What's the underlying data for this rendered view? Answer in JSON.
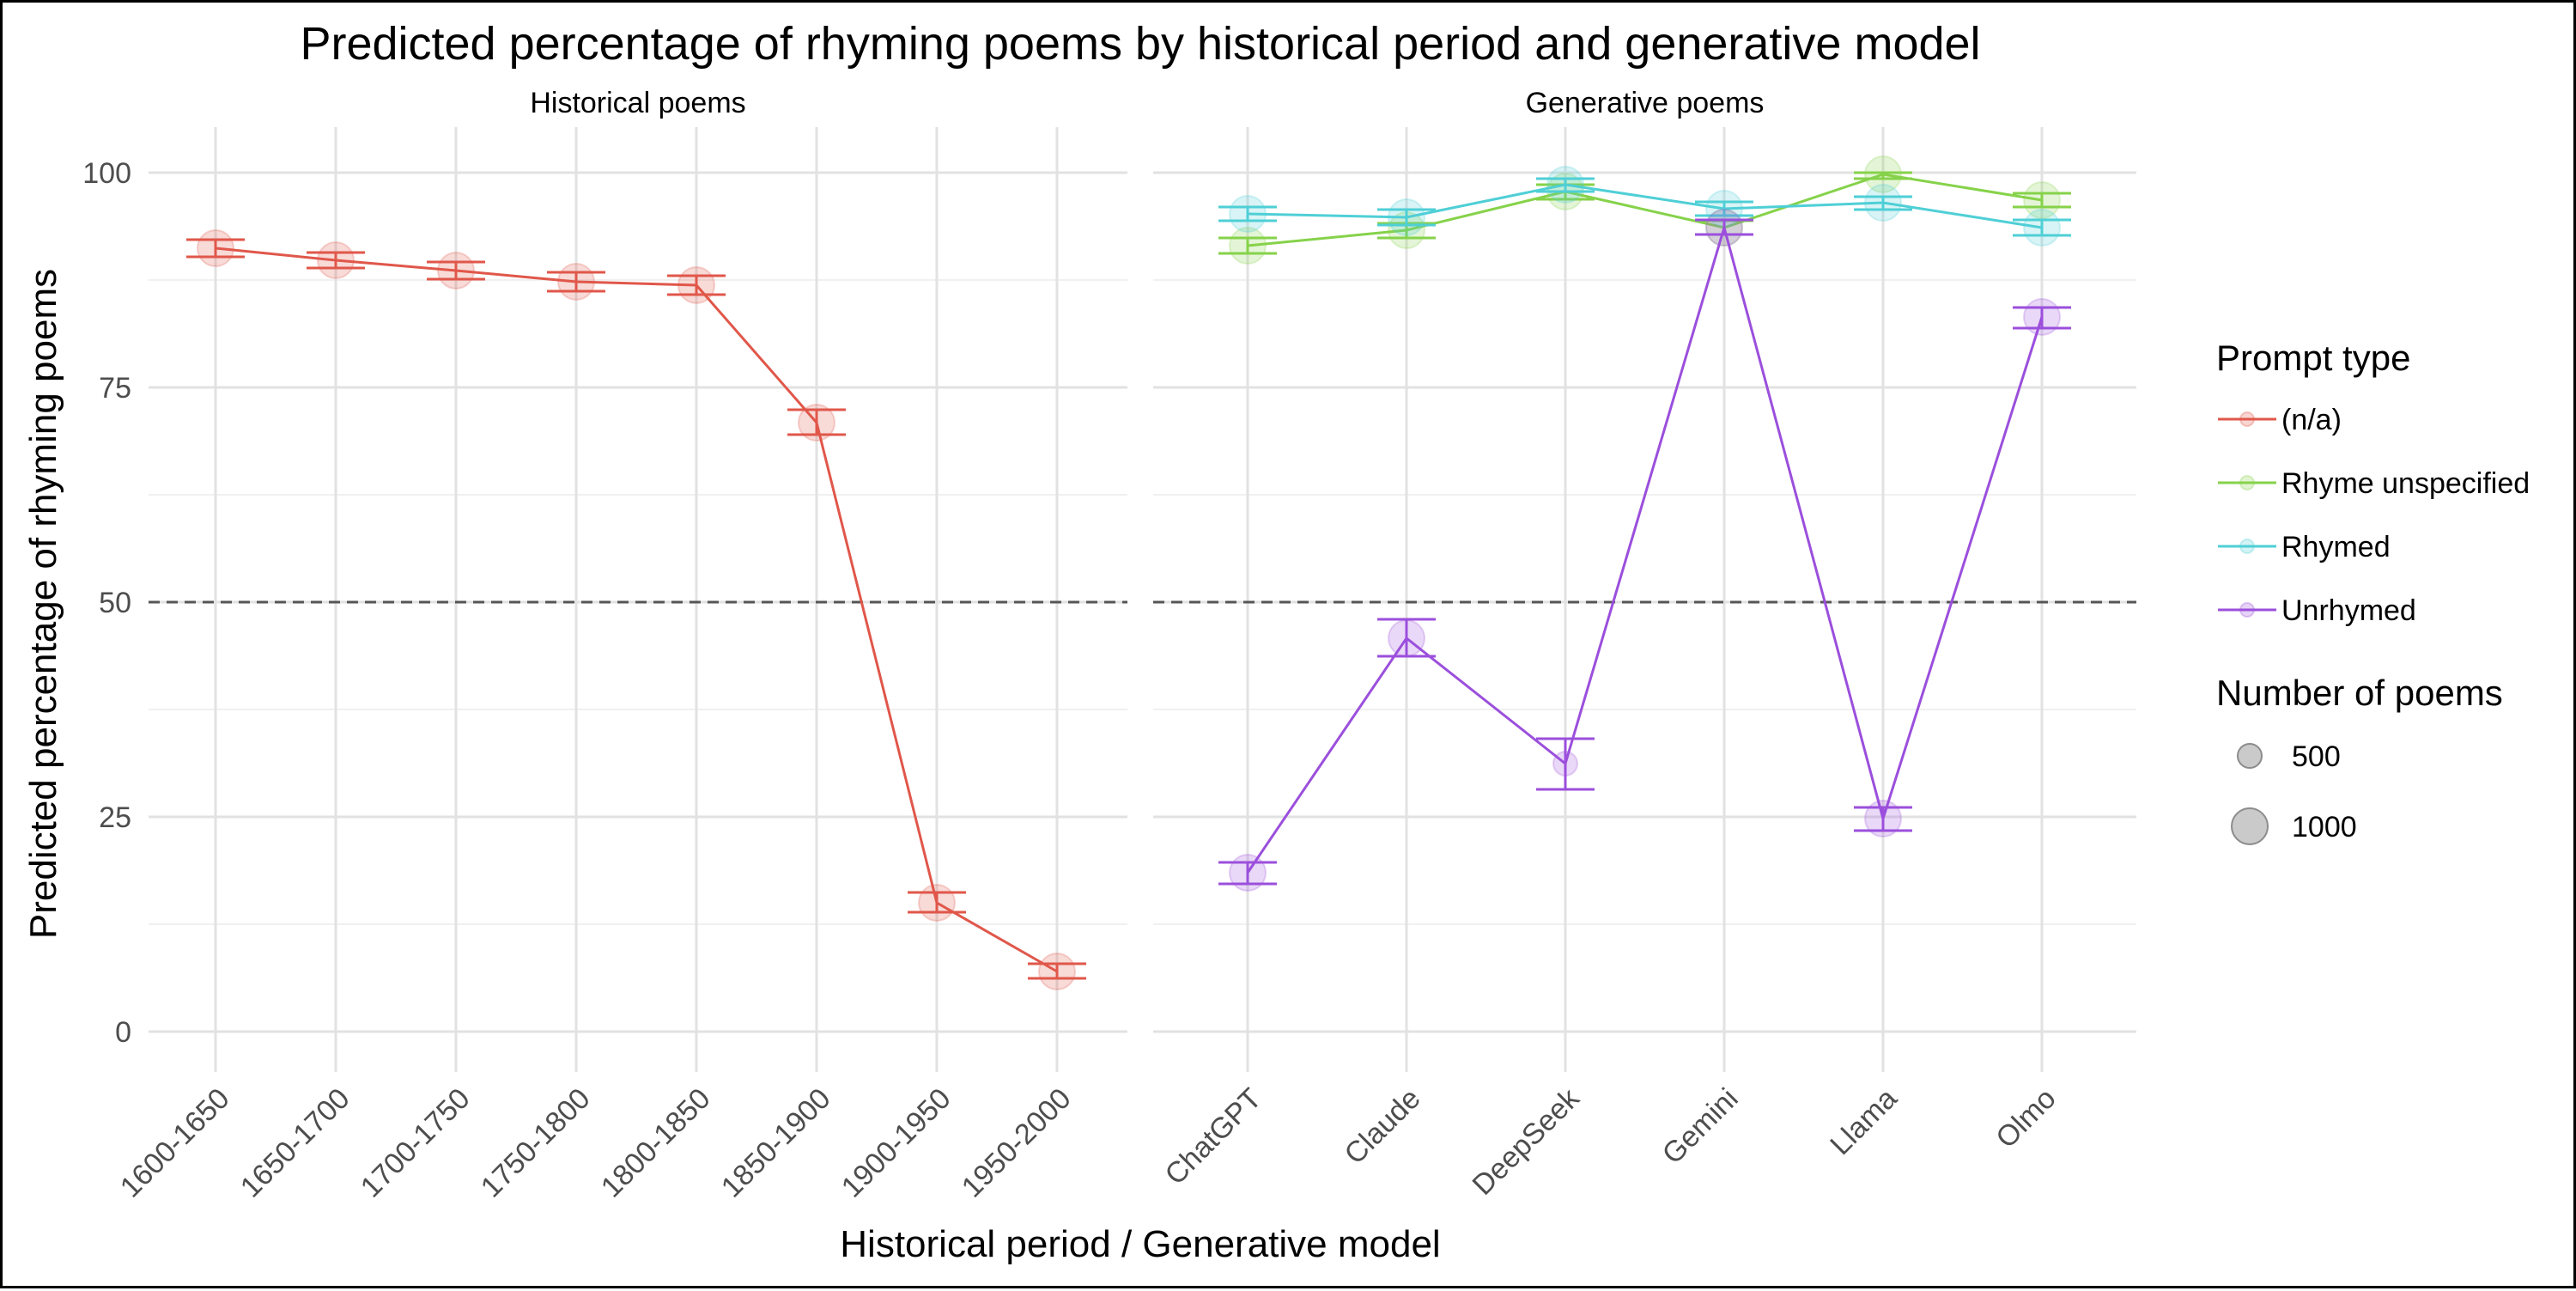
{
  "chart_data": {
    "type": "line",
    "title": "Predicted percentage of rhyming poems by historical period and generative model",
    "xlabel": "Historical period / Generative model",
    "ylabel": "Predicted percentage of rhyming poems",
    "ylim": [
      0,
      100
    ],
    "yticks": [
      "0",
      "25",
      "50",
      "75",
      "100"
    ],
    "reference_line": {
      "y": 50,
      "style": "dashed"
    },
    "grid": true,
    "colors": {
      "na": "#e0574a",
      "rhyme_unspecified": "#86d24a",
      "rhymed": "#4fcfd6",
      "unrhymed": "#9b4fdc"
    },
    "panels": [
      {
        "label": "Historical poems",
        "categories": [
          "1600-1650",
          "1650-1700",
          "1700-1750",
          "1750-1800",
          "1800-1850",
          "1850-1900",
          "1900-1950",
          "1950-2000"
        ],
        "series": [
          {
            "key": "na",
            "values": [
              91.2,
              89.8,
              88.6,
              87.3,
              86.9,
              70.9,
              15.0,
              7.0
            ],
            "lower": [
              90.2,
              88.9,
              87.6,
              86.2,
              85.8,
              69.5,
              13.9,
              6.2
            ],
            "upper": [
              92.2,
              90.7,
              89.6,
              88.4,
              88.0,
              72.4,
              16.2,
              7.9
            ],
            "counts": [
              1000,
              1000,
              1000,
              1000,
              1000,
              1000,
              1000,
              1000
            ]
          }
        ]
      },
      {
        "label": "Generative poems",
        "categories": [
          "ChatGPT",
          "Claude",
          "DeepSeek",
          "Gemini",
          "Llama",
          "Olmo"
        ],
        "series": [
          {
            "key": "rhyme_unspecified",
            "values": [
              91.5,
              93.3,
              97.8,
              93.6,
              99.8,
              96.8
            ],
            "lower": [
              90.6,
              92.4,
              96.9,
              92.8,
              99.3,
              96.0
            ],
            "upper": [
              92.4,
              94.1,
              98.6,
              94.4,
              100.0,
              97.6
            ],
            "counts": [
              1000,
              1000,
              1000,
              1000,
              1000,
              1000
            ]
          },
          {
            "key": "rhymed",
            "values": [
              95.2,
              94.8,
              98.6,
              95.8,
              96.5,
              93.6
            ],
            "lower": [
              94.4,
              93.9,
              97.8,
              95.0,
              95.7,
              92.7
            ],
            "upper": [
              96.0,
              95.7,
              99.3,
              96.6,
              97.2,
              94.5
            ],
            "counts": [
              1000,
              1000,
              1000,
              1000,
              1000,
              1000
            ]
          },
          {
            "key": "unrhymed",
            "values": [
              18.5,
              45.8,
              31.2,
              93.6,
              24.8,
              83.2
            ],
            "lower": [
              17.2,
              43.7,
              28.2,
              92.8,
              23.4,
              81.9
            ],
            "upper": [
              19.7,
              48.0,
              34.1,
              94.5,
              26.1,
              84.3
            ],
            "counts": [
              1000,
              1000,
              500,
              1000,
              1000,
              1000
            ]
          }
        ]
      }
    ],
    "legend": {
      "placement": "right",
      "prompt_title": "Prompt type",
      "prompt_items": [
        {
          "key": "na",
          "label": "(n/a)"
        },
        {
          "key": "rhyme_unspecified",
          "label": "Rhyme unspecified"
        },
        {
          "key": "rhymed",
          "label": "Rhymed"
        },
        {
          "key": "unrhymed",
          "label": "Unrhymed"
        }
      ],
      "size_title": "Number of poems",
      "size_items": [
        {
          "label": "500",
          "value": 500
        },
        {
          "label": "1000",
          "value": 1000
        }
      ]
    }
  }
}
